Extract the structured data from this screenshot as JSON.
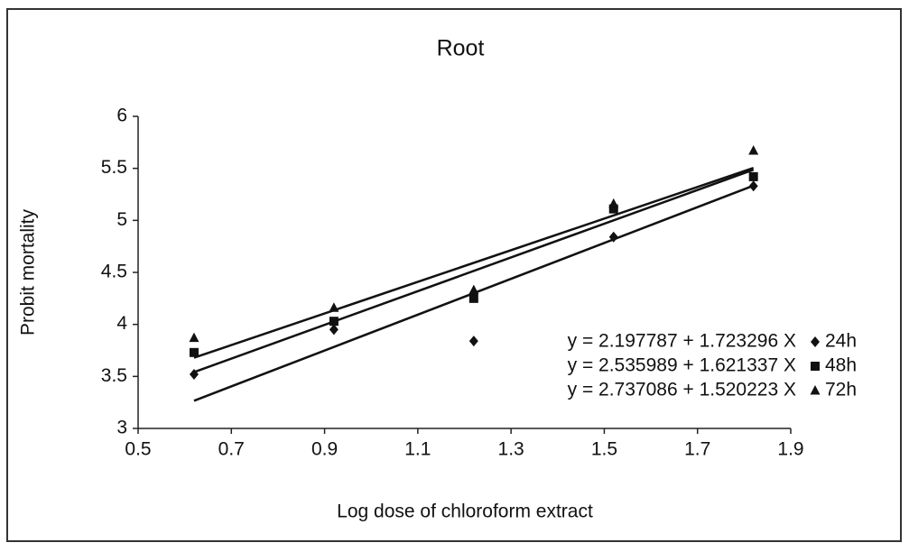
{
  "chart_data": {
    "type": "scatter",
    "title": "Root",
    "x_label": "Log dose of chloroform extract",
    "y_label": "Probit mortality",
    "x": [
      0.62,
      0.92,
      1.22,
      1.52,
      1.82
    ],
    "series": [
      {
        "name": "24h",
        "color": "#111111",
        "marker": "diamond",
        "values": [
          3.52,
          3.95,
          3.84,
          4.84,
          5.33
        ],
        "equation": "y = 2.197787 + 1.723296 X",
        "intercept": 2.197787,
        "slope": 1.723296
      },
      {
        "name": "48h",
        "color": "#111111",
        "marker": "square",
        "values": [
          3.73,
          4.03,
          4.25,
          5.11,
          5.42
        ],
        "equation": "y = 2.535989 + 1.621337 X",
        "intercept": 2.535989,
        "slope": 1.621337
      },
      {
        "name": "72h",
        "color": "#111111",
        "marker": "triangle",
        "values": [
          3.87,
          4.16,
          4.33,
          5.16,
          5.67
        ],
        "equation": "y = 2.737086 + 1.520223 X",
        "intercept": 2.737086,
        "slope": 1.520223
      }
    ],
    "xlim": [
      0.5,
      1.9
    ],
    "xticks": [
      0.5,
      0.7,
      0.9,
      1.1,
      1.3,
      1.5,
      1.7,
      1.9
    ],
    "ylim": [
      3,
      6
    ],
    "yticks": [
      3,
      3.5,
      4,
      4.5,
      5,
      5.5,
      6
    ],
    "grid": false
  }
}
